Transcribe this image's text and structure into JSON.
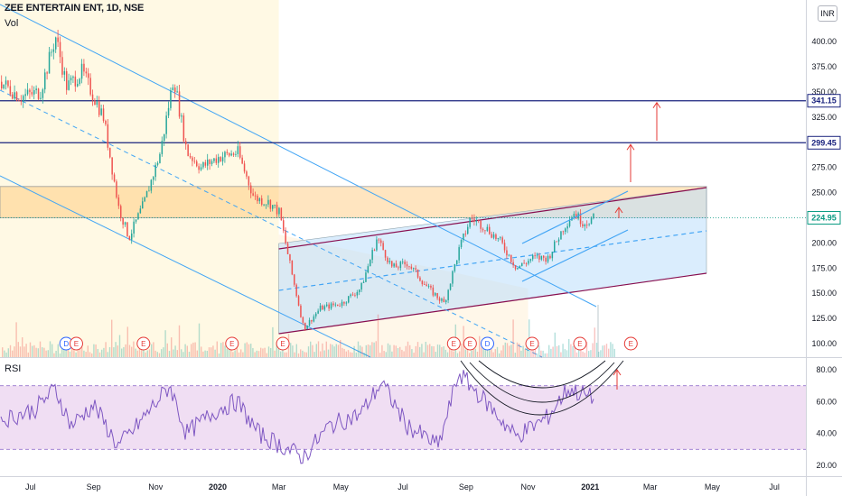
{
  "header": {
    "title": "ZEE ENTERTAIN ENT, 1D, NSE",
    "volume_label": "Vol",
    "rsi_label": "RSI",
    "currency": "INR"
  },
  "colors": {
    "up": "#26a69a",
    "down": "#ef5350",
    "channel": "#42a5f5",
    "resistance": "#1a237e",
    "current": "#089981",
    "rsi": "#7e57c2",
    "zone": "#ffb74d"
  },
  "chart_data": {
    "type": "candlestick",
    "symbol": "ZEE ENTERTAIN ENT",
    "interval": "1D",
    "exchange": "NSE",
    "x_ticks": [
      "Jul",
      "Sep",
      "Nov",
      "2020",
      "Mar",
      "May",
      "Jul",
      "Sep",
      "Nov",
      "2021",
      "Mar",
      "May",
      "Jul"
    ],
    "y_ticks": [
      "400.00",
      "375.00",
      "350.00",
      "325.00",
      "275.00",
      "250.00",
      "200.00",
      "175.00",
      "150.00",
      "125.00",
      "100.00"
    ],
    "ylim": [
      95,
      425
    ],
    "price_path": [
      {
        "date": "2019-06-01",
        "close": 360
      },
      {
        "date": "2019-06-20",
        "close": 345
      },
      {
        "date": "2019-07-10",
        "close": 350
      },
      {
        "date": "2019-07-25",
        "close": 405
      },
      {
        "date": "2019-08-05",
        "close": 355
      },
      {
        "date": "2019-08-20",
        "close": 370
      },
      {
        "date": "2019-09-10",
        "close": 325
      },
      {
        "date": "2019-09-25",
        "close": 235
      },
      {
        "date": "2019-10-05",
        "close": 205
      },
      {
        "date": "2019-10-20",
        "close": 240
      },
      {
        "date": "2019-11-05",
        "close": 290
      },
      {
        "date": "2019-11-18",
        "close": 365
      },
      {
        "date": "2019-12-01",
        "close": 290
      },
      {
        "date": "2019-12-15",
        "close": 275
      },
      {
        "date": "2020-01-01",
        "close": 285
      },
      {
        "date": "2020-01-20",
        "close": 290
      },
      {
        "date": "2020-02-05",
        "close": 245
      },
      {
        "date": "2020-02-20",
        "close": 240
      },
      {
        "date": "2020-03-01",
        "close": 230
      },
      {
        "date": "2020-03-12",
        "close": 175
      },
      {
        "date": "2020-03-25",
        "close": 115
      },
      {
        "date": "2020-04-10",
        "close": 135
      },
      {
        "date": "2020-05-01",
        "close": 140
      },
      {
        "date": "2020-05-20",
        "close": 155
      },
      {
        "date": "2020-06-05",
        "close": 205
      },
      {
        "date": "2020-06-20",
        "close": 175
      },
      {
        "date": "2020-07-05",
        "close": 180
      },
      {
        "date": "2020-07-25",
        "close": 155
      },
      {
        "date": "2020-08-10",
        "close": 140
      },
      {
        "date": "2020-08-25",
        "close": 195
      },
      {
        "date": "2020-09-05",
        "close": 225
      },
      {
        "date": "2020-09-20",
        "close": 215
      },
      {
        "date": "2020-10-05",
        "close": 200
      },
      {
        "date": "2020-10-20",
        "close": 175
      },
      {
        "date": "2020-11-05",
        "close": 185
      },
      {
        "date": "2020-11-20",
        "close": 185
      },
      {
        "date": "2020-12-05",
        "close": 215
      },
      {
        "date": "2020-12-15",
        "close": 230
      },
      {
        "date": "2020-12-25",
        "close": 220
      },
      {
        "date": "2021-01-05",
        "close": 225
      }
    ],
    "price_labels": [
      {
        "value": 341.15,
        "label": "341.15",
        "kind": "resistance"
      },
      {
        "value": 299.45,
        "label": "299.45",
        "kind": "resistance"
      },
      {
        "value": 224.95,
        "label": "224.95",
        "kind": "current"
      }
    ],
    "supply_zone": {
      "from": 225,
      "to": 256
    },
    "event_markers": [
      {
        "date": "2019-08-05",
        "label": "D"
      },
      {
        "date": "2019-08-15",
        "label": "E"
      },
      {
        "date": "2019-10-20",
        "label": "E"
      },
      {
        "date": "2020-01-15",
        "label": "E"
      },
      {
        "date": "2020-03-05",
        "label": "E"
      },
      {
        "date": "2020-08-20",
        "label": "E"
      },
      {
        "date": "2020-09-05",
        "label": "E"
      },
      {
        "date": "2020-09-22",
        "label": "D"
      },
      {
        "date": "2020-11-05",
        "label": "E"
      },
      {
        "date": "2020-12-22",
        "label": "E"
      },
      {
        "date": "2021-02-10",
        "label": "E"
      }
    ],
    "rsi": {
      "y_ticks": [
        "80.00",
        "60.00",
        "40.00",
        "20.00"
      ],
      "ylim": [
        15,
        85
      ],
      "bands": [
        30,
        70
      ],
      "path": [
        {
          "date": "2019-06-01",
          "value": 48
        },
        {
          "date": "2019-07-05",
          "value": 55
        },
        {
          "date": "2019-07-25",
          "value": 68
        },
        {
          "date": "2019-08-10",
          "value": 45
        },
        {
          "date": "2019-09-01",
          "value": 58
        },
        {
          "date": "2019-09-25",
          "value": 32
        },
        {
          "date": "2019-10-10",
          "value": 42
        },
        {
          "date": "2019-11-15",
          "value": 70
        },
        {
          "date": "2019-12-01",
          "value": 40
        },
        {
          "date": "2020-01-01",
          "value": 55
        },
        {
          "date": "2020-01-20",
          "value": 60
        },
        {
          "date": "2020-02-10",
          "value": 40
        },
        {
          "date": "2020-03-25",
          "value": 25
        },
        {
          "date": "2020-04-20",
          "value": 45
        },
        {
          "date": "2020-05-20",
          "value": 52
        },
        {
          "date": "2020-06-10",
          "value": 72
        },
        {
          "date": "2020-07-05",
          "value": 45
        },
        {
          "date": "2020-08-05",
          "value": 32
        },
        {
          "date": "2020-08-25",
          "value": 78
        },
        {
          "date": "2020-09-20",
          "value": 60
        },
        {
          "date": "2020-10-20",
          "value": 38
        },
        {
          "date": "2020-11-20",
          "value": 50
        },
        {
          "date": "2020-12-10",
          "value": 68
        },
        {
          "date": "2021-01-05",
          "value": 62
        }
      ]
    }
  }
}
